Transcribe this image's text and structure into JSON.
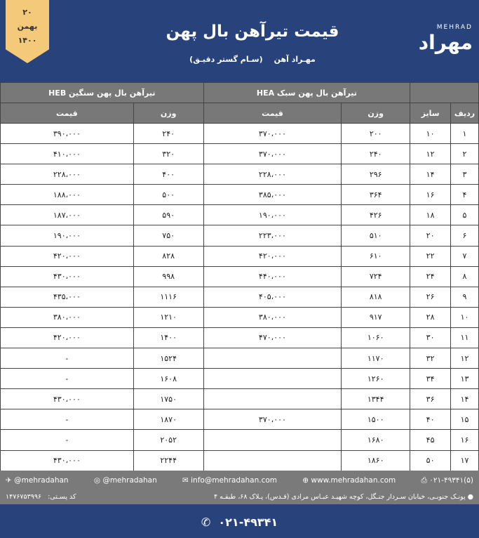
{
  "header": {
    "date_day": "۲۰",
    "date_month": "بهمن",
    "date_year": "۱۴۰۰",
    "title": "قیمت تیرآهن بال پهن",
    "subtitle_brand": "مهـراد آهن",
    "subtitle_company": "(سـام گستر دقیـق)",
    "logo_en": "MEHRAD",
    "logo_fa": "مهراد"
  },
  "table": {
    "group_headers": [
      "",
      "تیرآهن بال پهن سبک HEA",
      "تیرآهن بال پهن سنگین HEB"
    ],
    "columns": [
      "ردیف",
      "سایز",
      "وزن",
      "قیمت",
      "وزن",
      "قیمت"
    ],
    "rows": [
      [
        "۱",
        "۱۰",
        "۲۰۰",
        "۳۷۰،۰۰۰",
        "۲۴۰",
        "۳۹۰،۰۰۰"
      ],
      [
        "۲",
        "۱۲",
        "۲۴۰",
        "۳۷۰،۰۰۰",
        "۳۲۰",
        "۴۱۰،۰۰۰"
      ],
      [
        "۳",
        "۱۴",
        "۲۹۶",
        "۲۲۸،۰۰۰",
        "۴۰۰",
        "۲۲۸،۰۰۰"
      ],
      [
        "۴",
        "۱۶",
        "۳۶۴",
        "۳۸۵،۰۰۰",
        "۵۰۰",
        "۱۸۸،۰۰۰"
      ],
      [
        "۵",
        "۱۸",
        "۴۲۶",
        "۱۹۰،۰۰۰",
        "۵۹۰",
        "۱۸۷،۰۰۰"
      ],
      [
        "۶",
        "۲۰",
        "۵۱۰",
        "۲۲۳،۰۰۰",
        "۷۵۰",
        "۱۹۰،۰۰۰"
      ],
      [
        "۷",
        "۲۲",
        "۶۱۰",
        "۴۲۰،۰۰۰",
        "۸۲۸",
        "۴۲۰،۰۰۰"
      ],
      [
        "۸",
        "۲۴",
        "۷۲۴",
        "۴۴۰،۰۰۰",
        "۹۹۸",
        "۴۳۰،۰۰۰"
      ],
      [
        "۹",
        "۲۶",
        "۸۱۸",
        "۴۰۵،۰۰۰",
        "۱۱۱۶",
        "۴۳۵،۰۰۰"
      ],
      [
        "۱۰",
        "۲۸",
        "۹۱۷",
        "۳۸۰،۰۰۰",
        "۱۲۱۰",
        "۳۸۰،۰۰۰"
      ],
      [
        "۱۱",
        "۳۰",
        "۱۰۶۰",
        "۴۷۰،۰۰۰",
        "۱۴۰۰",
        "۴۲۰،۰۰۰"
      ],
      [
        "۱۲",
        "۳۲",
        "۱۱۷۰",
        "",
        "۱۵۲۴",
        "-"
      ],
      [
        "۱۳",
        "۳۴",
        "۱۲۶۰",
        "",
        "۱۶۰۸",
        "-"
      ],
      [
        "۱۴",
        "۳۶",
        "۱۳۴۴",
        "",
        "۱۷۵۰",
        "۴۳۰،۰۰۰"
      ],
      [
        "۱۵",
        "۴۰",
        "۱۵۰۰",
        "۳۷۰،۰۰۰",
        "۱۸۷۰",
        "-"
      ],
      [
        "۱۶",
        "۴۵",
        "۱۶۸۰",
        "",
        "۲۰۵۲",
        "-"
      ],
      [
        "۱۷",
        "۵۰",
        "۱۸۶۰",
        "",
        "۲۲۴۴",
        "۴۳۰،۰۰۰"
      ]
    ]
  },
  "footer": {
    "telegram": "@mehradahan",
    "instagram": "@mehradahan",
    "email": "info@mehradahan.com",
    "website": "www.mehradahan.com",
    "fax": "۰۲۱-۴۹۳۴۱(۵)",
    "address": "پونـک جنوبـی، خیابان سـردار جنـگل، کوچه شهیـد عبـاس مرادی (قـدس)، پـلاک ۶۸، طبقـه ۴",
    "postal_label": "کد پسـتی:",
    "postal_code": "۱۴۷۶۷۵۳۹۹۶",
    "phone": "۰۲۱-۴۹۳۴۱"
  }
}
